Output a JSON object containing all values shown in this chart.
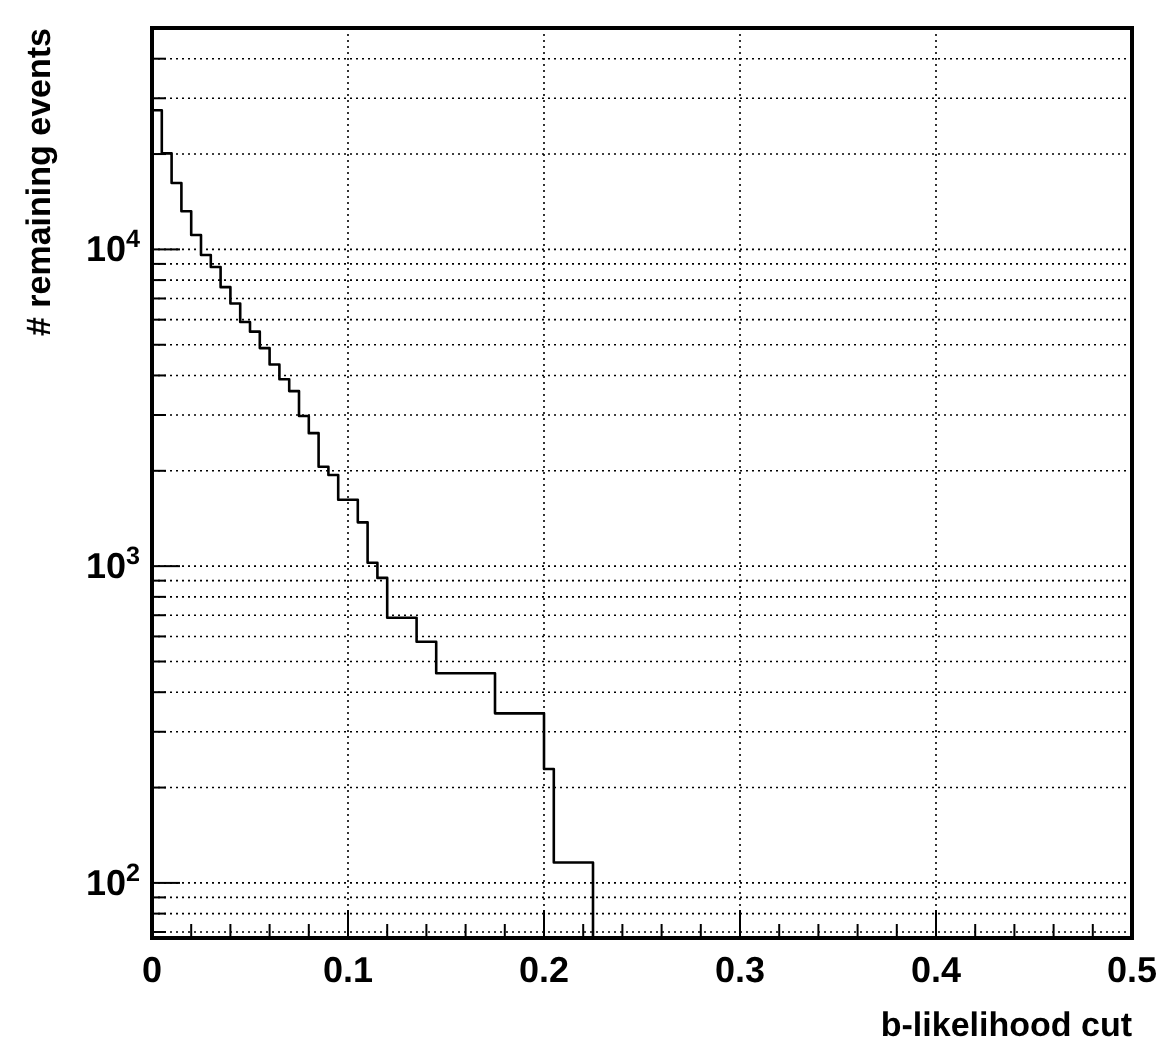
{
  "chart_data": {
    "type": "histogram",
    "xlabel": "b-likelihood cut",
    "ylabel": "# remaining events",
    "color": "#000000",
    "bins": [
      0,
      0.005,
      0.01,
      0.015,
      0.02,
      0.025,
      0.03,
      0.035,
      0.04,
      0.045,
      0.05,
      0.055,
      0.06,
      0.065,
      0.07,
      0.075,
      0.08,
      0.085,
      0.09,
      0.095,
      0.1,
      0.105,
      0.11,
      0.115,
      0.12,
      0.125,
      0.13,
      0.135,
      0.14,
      0.145,
      0.15,
      0.155,
      0.16,
      0.165,
      0.17,
      0.175,
      0.18,
      0.185,
      0.19,
      0.195,
      0.2,
      0.205,
      0.21,
      0.215,
      0.22,
      0.225
    ],
    "values": [
      27500,
      20100,
      16200,
      13200,
      11100,
      9600,
      8800,
      7600,
      6750,
      5900,
      5500,
      4880,
      4330,
      3890,
      3570,
      2980,
      2630,
      2060,
      1940,
      1620,
      1620,
      1375,
      1025,
      918,
      687,
      687,
      687,
      577,
      577,
      459,
      459,
      459,
      459,
      459,
      459,
      343,
      343,
      343,
      343,
      343,
      229,
      116,
      116,
      116,
      116
    ],
    "log": "y",
    "grid": true,
    "xlim": [
      0,
      0.5
    ],
    "xticks": [
      0,
      {
        "value": 0.02,
        "label": null
      },
      {
        "value": 0.04,
        "label": null
      },
      {
        "value": 0.06,
        "label": null
      },
      {
        "value": 0.08,
        "label": null
      },
      0.1,
      {
        "value": 0.12,
        "label": null
      },
      {
        "value": 0.14,
        "label": null
      },
      {
        "value": 0.16,
        "label": null
      },
      {
        "value": 0.18,
        "label": null
      },
      0.2,
      {
        "value": 0.22,
        "label": null
      },
      {
        "value": 0.24,
        "label": null
      },
      {
        "value": 0.26,
        "label": null
      },
      {
        "value": 0.28,
        "label": null
      },
      0.3,
      {
        "value": 0.32,
        "label": null
      },
      {
        "value": 0.34,
        "label": null
      },
      {
        "value": 0.36,
        "label": null
      },
      {
        "value": 0.38,
        "label": null
      },
      0.4,
      {
        "value": 0.42,
        "label": null
      },
      {
        "value": 0.44,
        "label": null
      },
      {
        "value": 0.46,
        "label": null
      },
      {
        "value": 0.48,
        "label": null
      },
      0.5
    ],
    "ylim": [
      67,
      50000
    ],
    "yticks": [
      {
        "value": 70,
        "label": null
      },
      {
        "value": 80,
        "label": null
      },
      {
        "value": 90,
        "label": null
      },
      {
        "value": 100,
        "label": "10$^{2}$"
      },
      {
        "value": 200,
        "label": null
      },
      {
        "value": 300,
        "label": null
      },
      {
        "value": 400,
        "label": null
      },
      {
        "value": 500,
        "label": null
      },
      {
        "value": 600,
        "label": null
      },
      {
        "value": 700,
        "label": null
      },
      {
        "value": 800,
        "label": null
      },
      {
        "value": 900,
        "label": null
      },
      {
        "value": 1000,
        "label": "10$^{3}$"
      },
      {
        "value": 2000,
        "label": null
      },
      {
        "value": 3000,
        "label": null
      },
      {
        "value": 4000,
        "label": null
      },
      {
        "value": 5000,
        "label": null
      },
      {
        "value": 6000,
        "label": null
      },
      {
        "value": 7000,
        "label": null
      },
      {
        "value": 8000,
        "label": null
      },
      {
        "value": 9000,
        "label": null
      },
      {
        "value": 10000,
        "label": "10$^{4}$"
      },
      {
        "value": 20000,
        "label": null
      },
      {
        "value": 30000,
        "label": null
      },
      {
        "value": 40000,
        "label": null
      },
      {
        "value": 50000,
        "label": null
      }
    ]
  }
}
